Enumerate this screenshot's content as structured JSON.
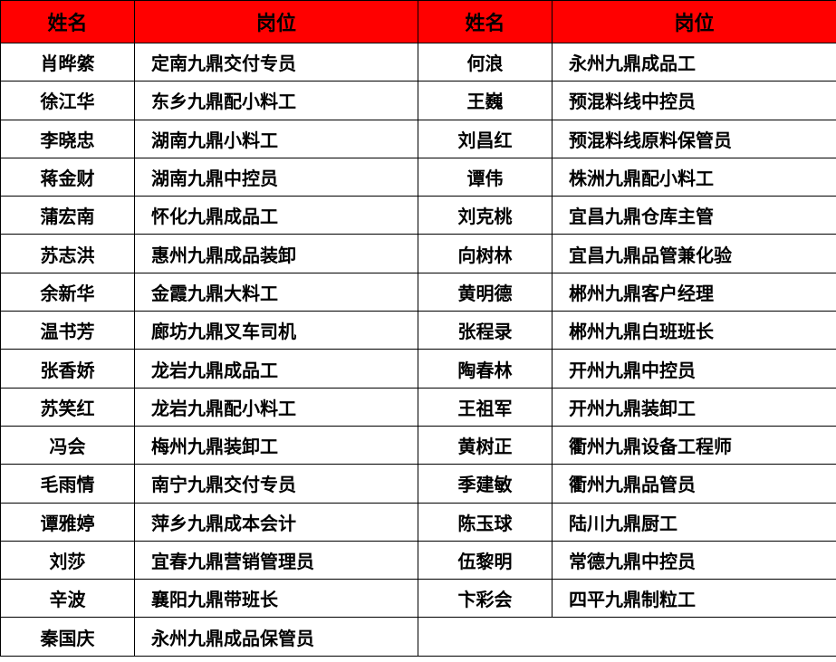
{
  "headers": {
    "name": "姓名",
    "position": "岗位"
  },
  "colors": {
    "header_bg": "#ff0000"
  },
  "left": [
    {
      "name": "肖晔綮",
      "position": "定南九鼎交付专员"
    },
    {
      "name": "徐江华",
      "position": "东乡九鼎配小料工"
    },
    {
      "name": "李晓忠",
      "position": "湖南九鼎小料工"
    },
    {
      "name": "蒋金财",
      "position": "湖南九鼎中控员"
    },
    {
      "name": "蒲宏南",
      "position": "怀化九鼎成品工"
    },
    {
      "name": "苏志洪",
      "position": "惠州九鼎成品装卸"
    },
    {
      "name": "余新华",
      "position": "金霞九鼎大料工"
    },
    {
      "name": "温书芳",
      "position": "廊坊九鼎叉车司机"
    },
    {
      "name": "张香娇",
      "position": "龙岩九鼎成品工"
    },
    {
      "name": "苏笑红",
      "position": "龙岩九鼎配小料工"
    },
    {
      "name": "冯会",
      "position": "梅州九鼎装卸工"
    },
    {
      "name": "毛雨情",
      "position": "南宁九鼎交付专员"
    },
    {
      "name": "谭雅婷",
      "position": "萍乡九鼎成本会计"
    },
    {
      "name": "刘莎",
      "position": "宜春九鼎营销管理员"
    },
    {
      "name": "辛波",
      "position": "襄阳九鼎带班长"
    },
    {
      "name": "秦国庆",
      "position": "永州九鼎成品保管员"
    }
  ],
  "right": [
    {
      "name": "何浪",
      "position": "永州九鼎成品工"
    },
    {
      "name": "王巍",
      "position": "预混料线中控员"
    },
    {
      "name": "刘昌红",
      "position": "预混料线原料保管员"
    },
    {
      "name": "谭伟",
      "position": "株洲九鼎配小料工"
    },
    {
      "name": "刘克桃",
      "position": "宜昌九鼎仓库主管"
    },
    {
      "name": "向树林",
      "position": "宜昌九鼎品管兼化验"
    },
    {
      "name": "黄明德",
      "position": "郴州九鼎客户经理"
    },
    {
      "name": "张程录",
      "position": "郴州九鼎白班班长"
    },
    {
      "name": "陶春林",
      "position": "开州九鼎中控员"
    },
    {
      "name": "王祖军",
      "position": "开州九鼎装卸工"
    },
    {
      "name": "黄树正",
      "position": "衢州九鼎设备工程师"
    },
    {
      "name": "季建敏",
      "position": "衢州九鼎品管员"
    },
    {
      "name": "陈玉球",
      "position": "陆川九鼎厨工"
    },
    {
      "name": "伍黎明",
      "position": "常德九鼎中控员"
    },
    {
      "name": "卞彩会",
      "position": "四平九鼎制粒工"
    }
  ]
}
